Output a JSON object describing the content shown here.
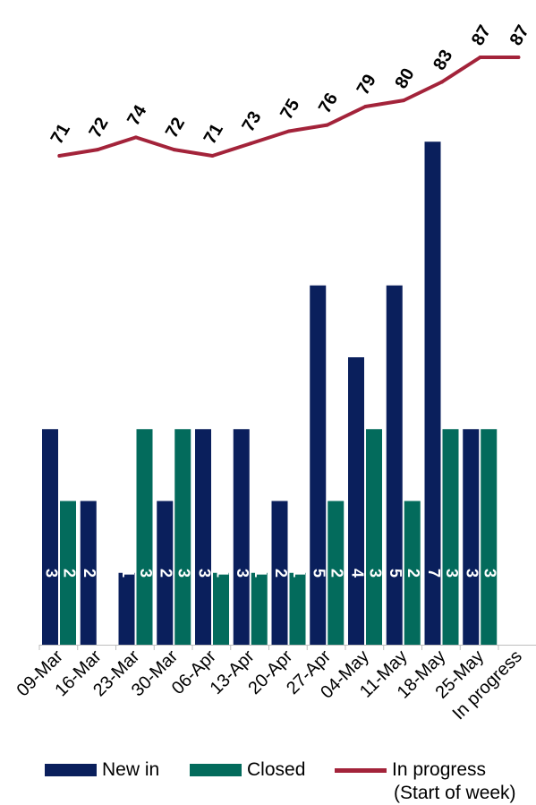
{
  "chart_data": {
    "type": "bar",
    "categories": [
      "09-Mar",
      "16-Mar",
      "23-Mar",
      "30-Mar",
      "06-Apr",
      "13-Apr",
      "20-Apr",
      "27-Apr",
      "04-May",
      "11-May",
      "18-May",
      "25-May",
      "In progress"
    ],
    "series": [
      {
        "name": "New in",
        "kind": "bar",
        "color": "#0a1f5c",
        "values": [
          3,
          2,
          1,
          2,
          3,
          3,
          2,
          5,
          4,
          5,
          7,
          3,
          null
        ]
      },
      {
        "name": "Closed",
        "kind": "bar",
        "color": "#036b5c",
        "values": [
          2,
          null,
          3,
          3,
          1,
          1,
          1,
          2,
          3,
          2,
          3,
          3,
          null
        ]
      },
      {
        "name": "In progress",
        "kind": "line",
        "color": "#a3233a",
        "values": [
          71,
          72,
          74,
          72,
          71,
          73,
          75,
          76,
          79,
          80,
          83,
          87,
          87
        ]
      }
    ],
    "title": "",
    "xlabel": "",
    "ylabel": "",
    "ylim_bars": [
      0,
      7
    ],
    "ylim_line": [
      71,
      87
    ],
    "legend_placement": "bottom",
    "legend_note": "(Start of week)",
    "grid": false
  }
}
